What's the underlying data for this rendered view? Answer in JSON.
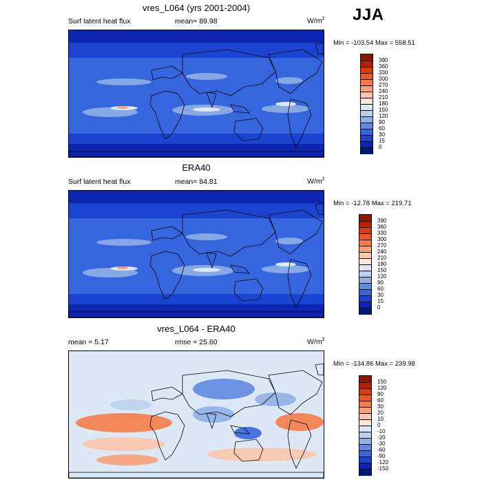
{
  "season": "JJA",
  "panels": [
    {
      "title": "vres_L064 (yrs 2001-2004)",
      "left_label": "Surf latent heat flux",
      "center_label": "mean=  89.98",
      "units": "W/m",
      "units_sup": "2",
      "minmax": "Min = -103.54 Max = 558.51",
      "colorbar": {
        "labels": [
          "390",
          "360",
          "330",
          "300",
          "270",
          "240",
          "210",
          "180",
          "150",
          "120",
          "90",
          "60",
          "30",
          "15",
          "0"
        ],
        "colors": [
          "#8c1402",
          "#b81f05",
          "#d93b0e",
          "#ea5a26",
          "#f47c48",
          "#f8a07a",
          "#fbc7ac",
          "#fde7d9",
          "#dde8f6",
          "#bcd0ee",
          "#8fb0e6",
          "#5f8ae0",
          "#3566de",
          "#1a44cf",
          "#0b25b0",
          "#011a7a"
        ]
      },
      "map_style": "positive"
    },
    {
      "title": "ERA40",
      "left_label": "Surf latent heat flux",
      "center_label": "mean=  84.81",
      "units": "W/m",
      "units_sup": "2",
      "minmax": "Min = -12.78 Max = 219.71",
      "colorbar": {
        "labels": [
          "390",
          "360",
          "330",
          "300",
          "270",
          "240",
          "210",
          "180",
          "150",
          "120",
          "90",
          "60",
          "30",
          "15",
          "0"
        ],
        "colors": [
          "#8c1402",
          "#b81f05",
          "#d93b0e",
          "#ea5a26",
          "#f47c48",
          "#f8a07a",
          "#fbc7ac",
          "#fde7d9",
          "#dde8f6",
          "#bcd0ee",
          "#8fb0e6",
          "#5f8ae0",
          "#3566de",
          "#1a44cf",
          "#0b25b0",
          "#011a7a"
        ]
      },
      "map_style": "positive"
    },
    {
      "title": "vres_L064 - ERA40",
      "left_label": "mean =  5.17",
      "center_label": "rmse =  25.60",
      "units": "W/m",
      "units_sup": "2",
      "minmax": "Min = -134.86 Max = 239.98",
      "colorbar": {
        "labels": [
          "150",
          "120",
          "90",
          "60",
          "30",
          "20",
          "10",
          "0",
          "-10",
          "-20",
          "-30",
          "-60",
          "-90",
          "-120",
          "-150"
        ],
        "colors": [
          "#8c1402",
          "#b81f05",
          "#d93b0e",
          "#ea5a26",
          "#f47c48",
          "#f8a07a",
          "#fbc7ac",
          "#fde7d9",
          "#dde8f6",
          "#bcd0ee",
          "#8fb0e6",
          "#5f8ae0",
          "#3566de",
          "#1a44cf",
          "#0b25b0",
          "#011a7a"
        ]
      },
      "map_style": "difference"
    }
  ]
}
